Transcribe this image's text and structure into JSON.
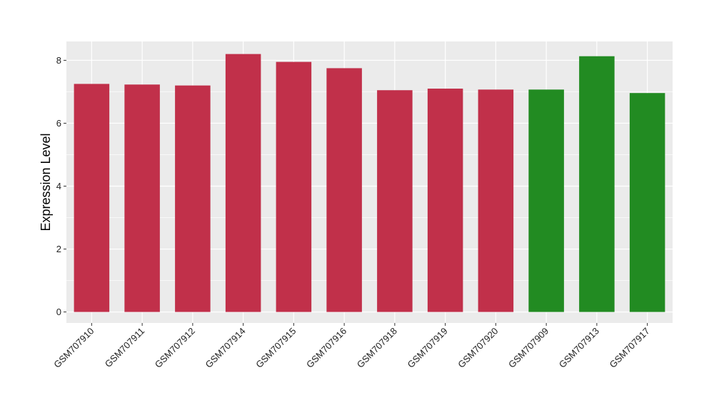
{
  "chart_data": {
    "type": "bar",
    "title": "",
    "xlabel": "",
    "ylabel": "Expression Level",
    "ylim": [
      -0.35,
      8.6
    ],
    "y_ticks": [
      0,
      2,
      4,
      6,
      8
    ],
    "grid": true,
    "legend": "none",
    "categories": [
      "GSM707910",
      "GSM707911",
      "GSM707912",
      "GSM707914",
      "GSM707915",
      "GSM707916",
      "GSM707918",
      "GSM707919",
      "GSM707920",
      "GSM707909",
      "GSM707913",
      "GSM707917"
    ],
    "values": [
      7.25,
      7.23,
      7.2,
      8.2,
      7.95,
      7.75,
      7.05,
      7.1,
      7.07,
      7.07,
      8.13,
      6.96
    ],
    "bar_colors": [
      "#c1304a",
      "#c1304a",
      "#c1304a",
      "#c1304a",
      "#c1304a",
      "#c1304a",
      "#c1304a",
      "#c1304a",
      "#c1304a",
      "#228b22",
      "#228b22",
      "#228b22"
    ],
    "panel_background": "#ebebeb",
    "grid_color": "#ffffff"
  }
}
